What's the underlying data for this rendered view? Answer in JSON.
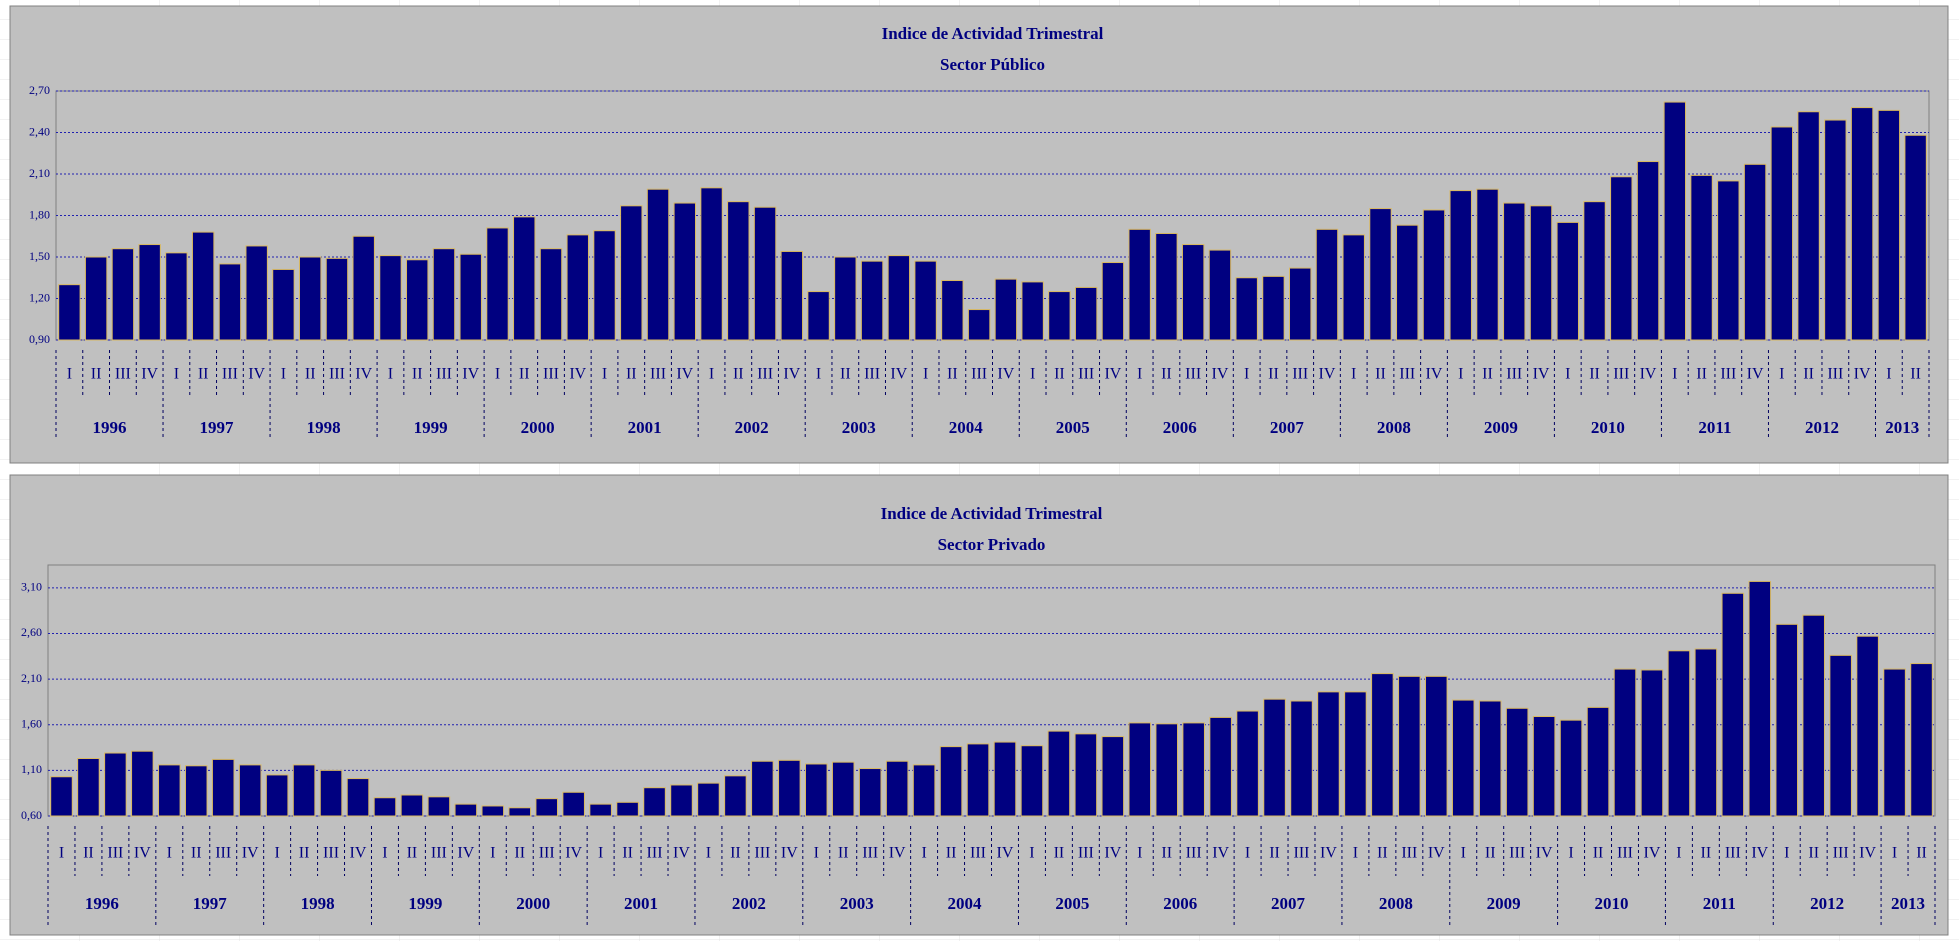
{
  "chart_data": [
    {
      "type": "bar",
      "title": "Indice de Actividad Trimestral",
      "subtitle": "Sector Público",
      "color": "#000080",
      "grid": true,
      "categories": [
        "I",
        "II",
        "III",
        "IV",
        "I",
        "II",
        "III",
        "IV",
        "I",
        "II",
        "III",
        "IV",
        "I",
        "II",
        "III",
        "IV",
        "I",
        "II",
        "III",
        "IV",
        "I",
        "II",
        "III",
        "IV",
        "I",
        "II",
        "III",
        "IV",
        "I",
        "II",
        "III",
        "IV",
        "I",
        "II",
        "III",
        "IV",
        "I",
        "II",
        "III",
        "IV",
        "I",
        "II",
        "III",
        "IV",
        "I",
        "II",
        "III",
        "IV",
        "I",
        "II",
        "III",
        "IV",
        "I",
        "II",
        "III",
        "IV",
        "I",
        "II",
        "III",
        "IV",
        "I",
        "II",
        "III",
        "IV",
        "I",
        "II",
        "III",
        "IV",
        "I",
        "II"
      ],
      "years": [
        "1996",
        "1997",
        "1998",
        "1999",
        "2000",
        "2001",
        "2002",
        "2003",
        "2004",
        "2005",
        "2006",
        "2007",
        "2008",
        "2009",
        "2010",
        "2011",
        "2012",
        "2013"
      ],
      "values": [
        1.3,
        1.5,
        1.56,
        1.59,
        1.53,
        1.68,
        1.45,
        1.58,
        1.41,
        1.5,
        1.49,
        1.65,
        1.51,
        1.48,
        1.56,
        1.52,
        1.71,
        1.79,
        1.56,
        1.66,
        1.69,
        1.87,
        1.99,
        1.89,
        2.0,
        1.9,
        1.86,
        1.54,
        1.25,
        1.5,
        1.47,
        1.51,
        1.47,
        1.33,
        1.12,
        1.34,
        1.32,
        1.25,
        1.28,
        1.46,
        1.7,
        1.67,
        1.59,
        1.55,
        1.35,
        1.36,
        1.42,
        1.7,
        1.66,
        1.85,
        1.73,
        1.84,
        1.98,
        1.99,
        1.89,
        1.87,
        1.75,
        1.9,
        2.08,
        2.19,
        2.62,
        2.09,
        2.05,
        2.17,
        2.44,
        2.55,
        2.49,
        2.58,
        2.56,
        2.38
      ],
      "ylim": [
        0.9,
        2.7
      ],
      "yticks": [
        {
          "value": 0.9,
          "label": "0,90"
        },
        {
          "value": 1.2,
          "label": "1,20"
        },
        {
          "value": 1.5,
          "label": "1,50"
        },
        {
          "value": 1.8,
          "label": "1,80"
        },
        {
          "value": 2.1,
          "label": "2,10"
        },
        {
          "value": 2.4,
          "label": "2,40"
        },
        {
          "value": 2.7,
          "label": "2,70"
        }
      ]
    },
    {
      "type": "bar",
      "title": "Indice de Actividad Trimestral",
      "subtitle": "Sector Privado",
      "color": "#000080",
      "grid": true,
      "categories": [
        "I",
        "II",
        "III",
        "IV",
        "I",
        "II",
        "III",
        "IV",
        "I",
        "II",
        "III",
        "IV",
        "I",
        "II",
        "III",
        "IV",
        "I",
        "II",
        "III",
        "IV",
        "I",
        "II",
        "III",
        "IV",
        "I",
        "II",
        "III",
        "IV",
        "I",
        "II",
        "III",
        "IV",
        "I",
        "II",
        "III",
        "IV",
        "I",
        "II",
        "III",
        "IV",
        "I",
        "II",
        "III",
        "IV",
        "I",
        "II",
        "III",
        "IV",
        "I",
        "II",
        "III",
        "IV",
        "I",
        "II",
        "III",
        "IV",
        "I",
        "II",
        "III",
        "IV",
        "I",
        "II",
        "III",
        "IV",
        "I",
        "II",
        "III",
        "IV",
        "I",
        "II"
      ],
      "years": [
        "1996",
        "1997",
        "1998",
        "1999",
        "2000",
        "2001",
        "2002",
        "2003",
        "2004",
        "2005",
        "2006",
        "2007",
        "2008",
        "2009",
        "2010",
        "2011",
        "2012",
        "2013"
      ],
      "values": [
        1.03,
        1.23,
        1.29,
        1.31,
        1.16,
        1.15,
        1.22,
        1.16,
        1.05,
        1.16,
        1.1,
        1.01,
        0.8,
        0.83,
        0.81,
        0.73,
        0.71,
        0.69,
        0.79,
        0.86,
        0.73,
        0.75,
        0.91,
        0.94,
        0.96,
        1.04,
        1.2,
        1.21,
        1.17,
        1.19,
        1.12,
        1.2,
        1.16,
        1.36,
        1.39,
        1.41,
        1.37,
        1.53,
        1.5,
        1.47,
        1.62,
        1.61,
        1.62,
        1.68,
        1.75,
        1.88,
        1.86,
        1.96,
        1.96,
        2.16,
        2.13,
        2.13,
        1.87,
        1.86,
        1.78,
        1.69,
        1.65,
        1.79,
        2.21,
        2.2,
        2.41,
        2.43,
        3.04,
        3.17,
        2.7,
        2.8,
        2.36,
        2.57,
        2.21,
        2.27
      ],
      "ylim": [
        0.6,
        3.35
      ],
      "yticks": [
        {
          "value": 0.6,
          "label": "0,60"
        },
        {
          "value": 1.1,
          "label": "1,10"
        },
        {
          "value": 1.6,
          "label": "1,60"
        },
        {
          "value": 2.1,
          "label": "2,10"
        },
        {
          "value": 2.6,
          "label": "2,60"
        },
        {
          "value": 3.1,
          "label": "3,10"
        }
      ]
    }
  ]
}
